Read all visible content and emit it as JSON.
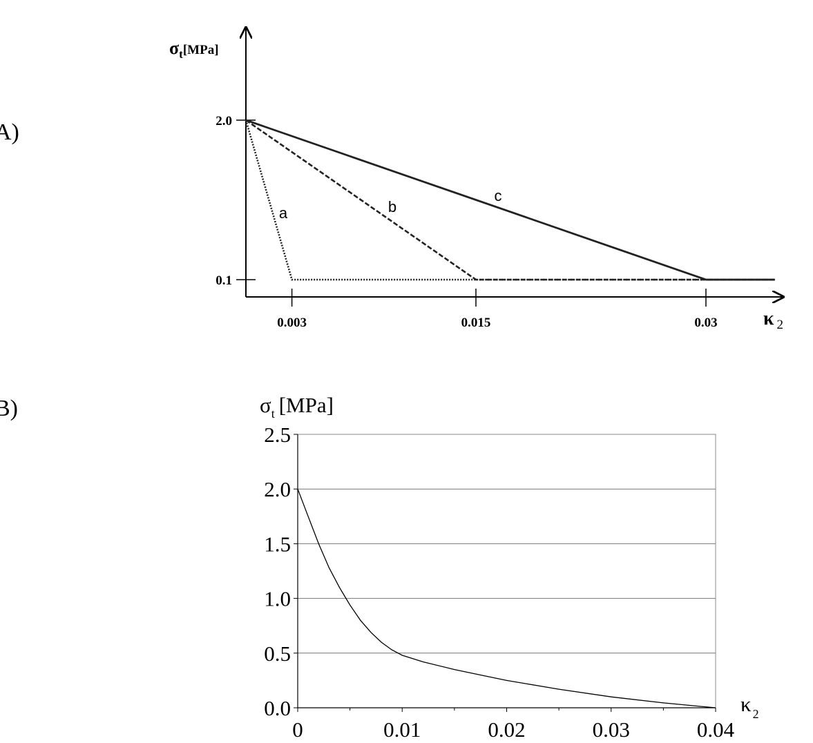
{
  "panels": {
    "a_label": "A)",
    "b_label": "B)"
  },
  "chart_data": [
    {
      "type": "line",
      "ylabel_symbol": "σ",
      "ylabel_sub": "t",
      "ylabel_unit": "[MPa]",
      "xlabel_symbol": "κ",
      "xlabel_sub": "2",
      "y_ticks": [
        "2.0",
        "0.1"
      ],
      "x_ticks": [
        "0.003",
        "0.015",
        "0.03"
      ],
      "y_tick_values": [
        2.0,
        0.1
      ],
      "x_tick_values": [
        0.003,
        0.015,
        0.03
      ],
      "series": [
        {
          "name": "a",
          "x": [
            0,
            0.003,
            0.0345
          ],
          "y": [
            2.0,
            0.1,
            0.1
          ]
        },
        {
          "name": "b",
          "x": [
            0,
            0.015,
            0.0345
          ],
          "y": [
            2.0,
            0.1,
            0.1
          ]
        },
        {
          "name": "c",
          "x": [
            0,
            0.03,
            0.0345
          ],
          "y": [
            2.0,
            0.1,
            0.1
          ]
        }
      ]
    },
    {
      "type": "line",
      "ylabel_symbol": "σ",
      "ylabel_sub": "t",
      "ylabel_unit": "[MPa]",
      "xlabel_symbol": "κ",
      "xlabel_sub": "2",
      "ylim": [
        0,
        2.5
      ],
      "xlim": [
        0,
        0.04
      ],
      "y_ticks": [
        "0.0",
        "0.5",
        "1.0",
        "1.5",
        "2.0",
        "2.5"
      ],
      "x_ticks": [
        "0",
        "0.01",
        "0.02",
        "0.03",
        "0.04"
      ],
      "grid": true,
      "series": [
        {
          "x": [
            0,
            0.001,
            0.002,
            0.003,
            0.004,
            0.005,
            0.006,
            0.007,
            0.008,
            0.009,
            0.01,
            0.012,
            0.015,
            0.018,
            0.02,
            0.025,
            0.03,
            0.035,
            0.04
          ],
          "y": [
            2.0,
            1.75,
            1.5,
            1.28,
            1.1,
            0.94,
            0.8,
            0.69,
            0.6,
            0.53,
            0.48,
            0.42,
            0.35,
            0.29,
            0.25,
            0.17,
            0.1,
            0.045,
            0.0
          ]
        }
      ]
    }
  ]
}
